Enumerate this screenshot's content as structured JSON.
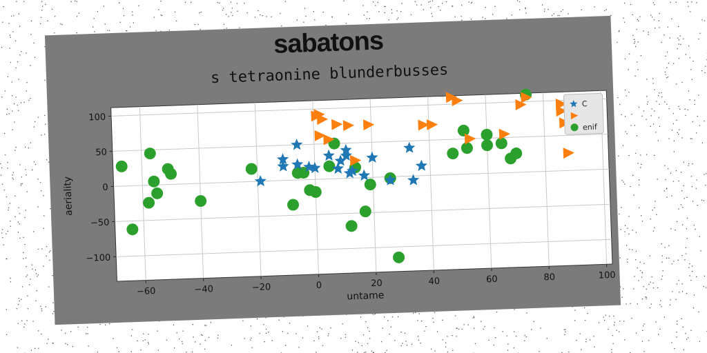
{
  "chart_data": {
    "type": "scatter",
    "title": "sabatons",
    "subtitle": "s tetraonine blunderbusses",
    "xlabel": "untame",
    "ylabel": "aeriality",
    "xlim": [
      -70,
      102
    ],
    "ylim": [
      -135,
      112
    ],
    "xticks": [
      -60,
      -40,
      -20,
      0,
      20,
      40,
      60,
      80,
      100
    ],
    "yticks": [
      -100,
      -50,
      0,
      50,
      100
    ],
    "grid": true,
    "legend_position": "top-right",
    "background": "#7b7b7b",
    "series": [
      {
        "name": "C",
        "marker": "star",
        "color": "#1f77b4",
        "x": [
          -6,
          5,
          11,
          9,
          11,
          -11,
          -11,
          -6,
          -2,
          0,
          8,
          13,
          17,
          20,
          26,
          33,
          34,
          37,
          12,
          -19
        ],
        "y": [
          50,
          33,
          40,
          25,
          32,
          30,
          20,
          22,
          18,
          16,
          14,
          10,
          3,
          28,
          -5,
          40,
          -6,
          14,
          7,
          0
        ]
      },
      {
        "name": "",
        "marker": "triangle-right",
        "color": "#ff7f0e",
        "x": [
          1,
          3,
          2,
          5,
          2,
          8,
          12,
          14,
          19,
          38,
          41,
          48,
          50,
          54,
          66,
          72,
          74,
          86,
          86,
          87,
          89,
          91,
          88,
          92
        ],
        "y": [
          90,
          85,
          62,
          56,
          92,
          77,
          75,
          25,
          75,
          72,
          72,
          110,
          105,
          50,
          55,
          96,
          106,
          95,
          85,
          68,
          60,
          80,
          25,
          65
        ]
      },
      {
        "name": "enif",
        "marker": "circle",
        "color": "#2ca02c",
        "x": [
          -67,
          -57,
          -56,
          -58,
          -55,
          -51,
          -50,
          -40,
          -64,
          -22,
          -6,
          -4,
          -8,
          -2,
          0,
          5,
          7,
          14,
          19,
          12,
          17,
          28,
          26,
          48,
          52,
          53,
          60,
          60,
          65,
          68,
          70,
          74
        ],
        "y": [
          28,
          45,
          5,
          -25,
          -12,
          22,
          15,
          -25,
          -62,
          18,
          10,
          10,
          -35,
          -15,
          -18,
          18,
          50,
          15,
          -10,
          -68,
          -48,
          -115,
          -2,
          30,
          62,
          37,
          40,
          55,
          42,
          20,
          27,
          110
        ]
      }
    ]
  }
}
